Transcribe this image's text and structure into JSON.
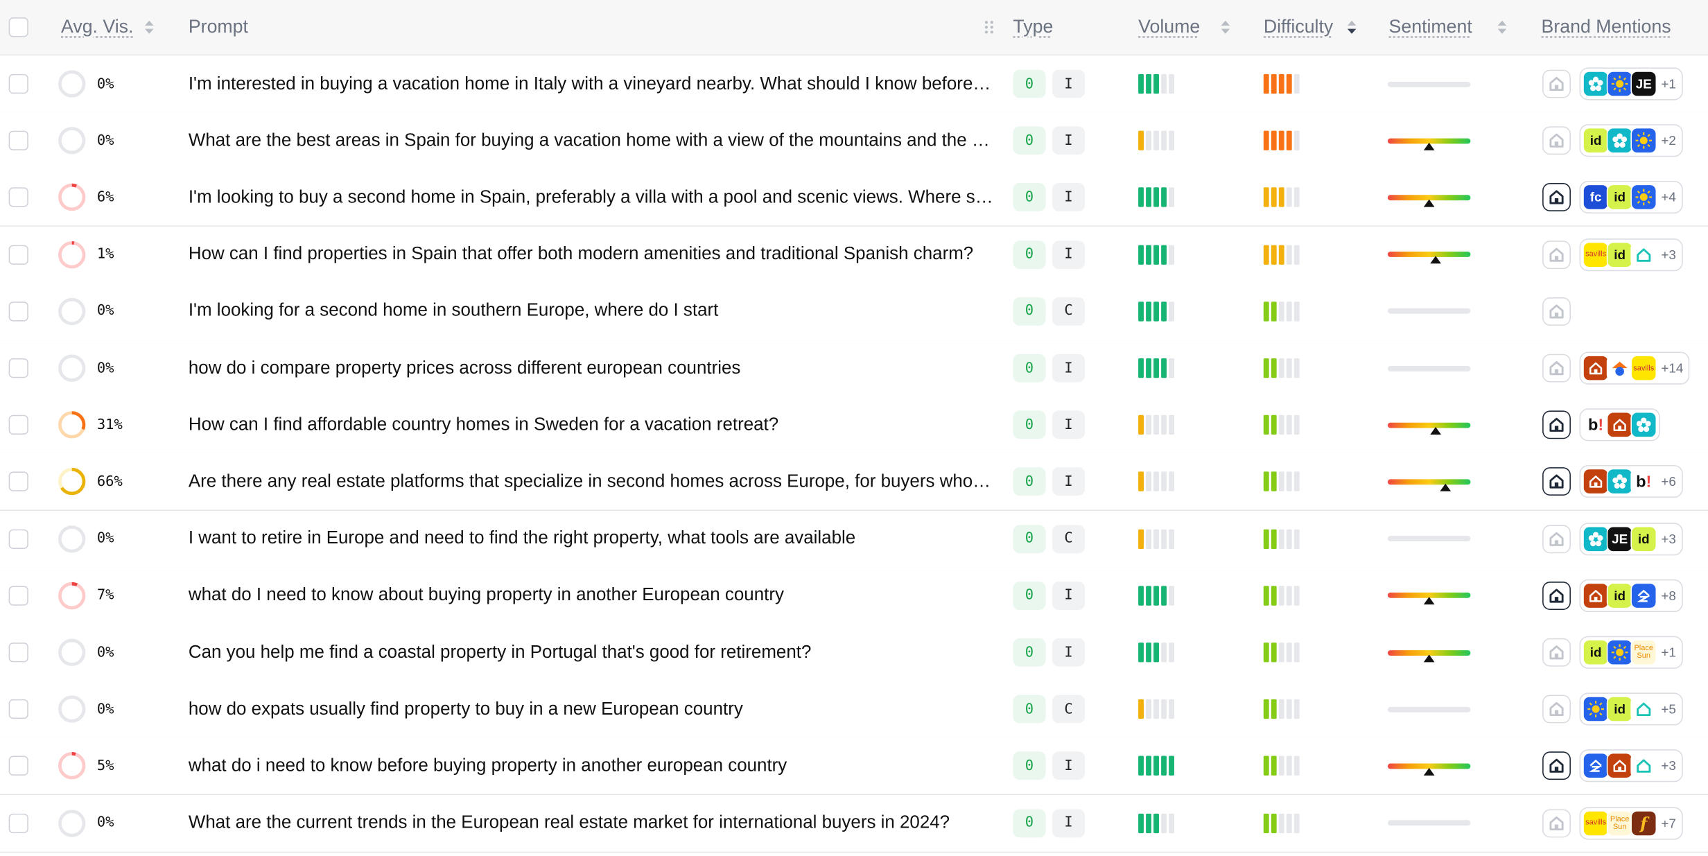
{
  "header": {
    "avg_vis": "Avg. Vis.",
    "prompt": "Prompt",
    "type": "Type",
    "volume": "Volume",
    "difficulty": "Difficulty",
    "sentiment": "Sentiment",
    "brand_mentions": "Brand Mentions"
  },
  "colors": {
    "green": "#16b574",
    "orange": "#f97316",
    "amber": "#f2b10c",
    "lime": "#84cc16",
    "ring_empty": "#e5e7eb",
    "ring_low": "#fecaca",
    "ring_low_fill": "#ef4444",
    "ring_mid": "#fed7aa",
    "ring_mid_fill": "#f97316",
    "ring_high_fill": "#eab308"
  },
  "rows": [
    {
      "visibility": 0,
      "pct": "0%",
      "prompt": "I'm interested in buying a vacation home in Italy with a vineyard nearby. What should I know before buying one there?",
      "tag_a": "0",
      "tag_b": "I",
      "volume": 3,
      "volume_color": "green",
      "difficulty": 4,
      "difficulty_color": "orange",
      "sentiment": null,
      "own_logo": "faint",
      "brands": [
        "flower",
        "sun",
        "je"
      ],
      "more": "+1"
    },
    {
      "visibility": 0,
      "pct": "0%",
      "prompt": "What are the best areas in Spain for buying a vacation home with a view of the mountains and the sea?",
      "tag_a": "0",
      "tag_b": "I",
      "volume": 1,
      "volume_color": "amber",
      "difficulty": 4,
      "difficulty_color": "orange",
      "sentiment": 0.5,
      "own_logo": "faint",
      "brands": [
        "id",
        "flower",
        "sun"
      ],
      "more": "+2"
    },
    {
      "visibility": 6,
      "pct": "6%",
      "prompt": "I'm looking to buy a second home in Spain, preferably a villa with a pool and scenic views. Where should I look?",
      "tag_a": "0",
      "tag_b": "I",
      "volume": 4,
      "volume_color": "green",
      "difficulty": 3,
      "difficulty_color": "amber",
      "sentiment": 0.5,
      "own_logo": "strong",
      "brands": [
        "fc",
        "id",
        "sun"
      ],
      "more": "+4"
    },
    {
      "visibility": 1,
      "pct": "1%",
      "prompt": "How can I find properties in Spain that offer both modern amenities and traditional Spanish charm?",
      "tag_a": "0",
      "tag_b": "I",
      "volume": 4,
      "volume_color": "green",
      "difficulty": 3,
      "difficulty_color": "amber",
      "sentiment": 0.58,
      "own_logo": "faint",
      "brands": [
        "savills",
        "id",
        "house-outline"
      ],
      "more": "+3"
    },
    {
      "visibility": 0,
      "pct": "0%",
      "prompt": "I'm looking for a second home in southern Europe, where do I start",
      "tag_a": "0",
      "tag_b": "C",
      "volume": 4,
      "volume_color": "green",
      "difficulty": 2,
      "difficulty_color": "lime",
      "sentiment": null,
      "own_logo": "faint",
      "brands": [],
      "more": ""
    },
    {
      "visibility": 0,
      "pct": "0%",
      "prompt": "how do i compare property prices across different european countries",
      "tag_a": "0",
      "tag_b": "I",
      "volume": 4,
      "volume_color": "green",
      "difficulty": 2,
      "difficulty_color": "lime",
      "sentiment": null,
      "own_logo": "faint",
      "brands": [
        "house-red",
        "orange-home",
        "savills"
      ],
      "more": "+14"
    },
    {
      "visibility": 31,
      "pct": "31%",
      "prompt": "How can I find affordable country homes in Sweden for a vacation retreat?",
      "tag_a": "0",
      "tag_b": "I",
      "volume": 1,
      "volume_color": "amber",
      "difficulty": 2,
      "difficulty_color": "lime",
      "sentiment": 0.58,
      "own_logo": "strong",
      "brands": [
        "booking",
        "house-red",
        "flower"
      ],
      "more": ""
    },
    {
      "visibility": 66,
      "pct": "66%",
      "prompt": "Are there any real estate platforms that specialize in second homes across Europe, for buyers who don't speak the local language?",
      "tag_a": "0",
      "tag_b": "I",
      "volume": 1,
      "volume_color": "amber",
      "difficulty": 2,
      "difficulty_color": "lime",
      "sentiment": 0.7,
      "own_logo": "strong",
      "brands": [
        "house-red",
        "flower",
        "booking"
      ],
      "more": "+6"
    },
    {
      "visibility": 0,
      "pct": "0%",
      "prompt": "I want to retire in Europe and need to find the right property, what tools are available",
      "tag_a": "0",
      "tag_b": "C",
      "volume": 1,
      "volume_color": "amber",
      "difficulty": 2,
      "difficulty_color": "lime",
      "sentiment": null,
      "own_logo": "faint",
      "brands": [
        "flower",
        "je",
        "id"
      ],
      "more": "+3"
    },
    {
      "visibility": 7,
      "pct": "7%",
      "prompt": "what do I need to know about buying property in another European country",
      "tag_a": "0",
      "tag_b": "I",
      "volume": 4,
      "volume_color": "green",
      "difficulty": 2,
      "difficulty_color": "lime",
      "sentiment": 0.5,
      "own_logo": "strong",
      "brands": [
        "house-red",
        "id",
        "blue-z"
      ],
      "more": "+8"
    },
    {
      "visibility": 0,
      "pct": "0%",
      "prompt": "Can you help me find a coastal property in Portugal that's good for retirement?",
      "tag_a": "0",
      "tag_b": "I",
      "volume": 3,
      "volume_color": "green",
      "difficulty": 2,
      "difficulty_color": "lime",
      "sentiment": 0.5,
      "own_logo": "faint",
      "brands": [
        "id",
        "sun",
        "place-sun"
      ],
      "more": "+1"
    },
    {
      "visibility": 0,
      "pct": "0%",
      "prompt": "how do expats usually find property to buy in a new European country",
      "tag_a": "0",
      "tag_b": "C",
      "volume": 1,
      "volume_color": "amber",
      "difficulty": 2,
      "difficulty_color": "lime",
      "sentiment": null,
      "own_logo": "faint",
      "brands": [
        "sun",
        "id",
        "house-outline"
      ],
      "more": "+5"
    },
    {
      "visibility": 5,
      "pct": "5%",
      "prompt": "what do i need to know before buying property in another european country",
      "tag_a": "0",
      "tag_b": "I",
      "volume": 5,
      "volume_color": "green",
      "difficulty": 2,
      "difficulty_color": "lime",
      "sentiment": 0.5,
      "own_logo": "strong",
      "brands": [
        "blue-z",
        "house-red",
        "house-outline"
      ],
      "more": "+3"
    },
    {
      "visibility": 0,
      "pct": "0%",
      "prompt": "What are the current trends in the European real estate market for international buyers in 2024?",
      "tag_a": "0",
      "tag_b": "I",
      "volume": 3,
      "volume_color": "green",
      "difficulty": 2,
      "difficulty_color": "lime",
      "sentiment": null,
      "own_logo": "faint",
      "brands": [
        "savills",
        "place-sun",
        "f-brown"
      ],
      "more": "+7"
    }
  ]
}
